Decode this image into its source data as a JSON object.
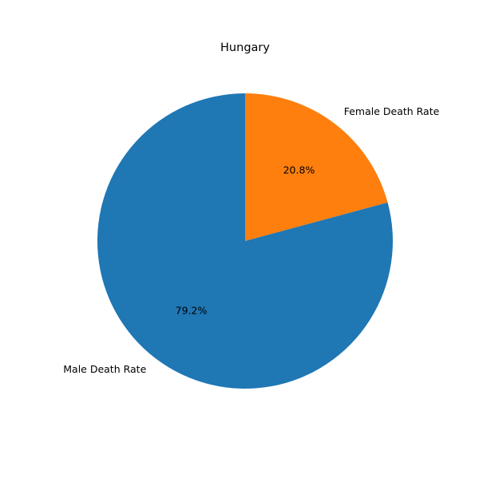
{
  "chart_data": {
    "type": "pie",
    "title": "Hungary",
    "slices": [
      {
        "label": "Female Death Rate",
        "value": 20.8,
        "pct_label": "20.8%",
        "color": "#ff7f0e"
      },
      {
        "label": "Male Death Rate",
        "value": 79.2,
        "pct_label": "79.2%",
        "color": "#1f77b4"
      }
    ],
    "start_angle_deg": 90,
    "direction": "clockwise",
    "legend": "none"
  }
}
